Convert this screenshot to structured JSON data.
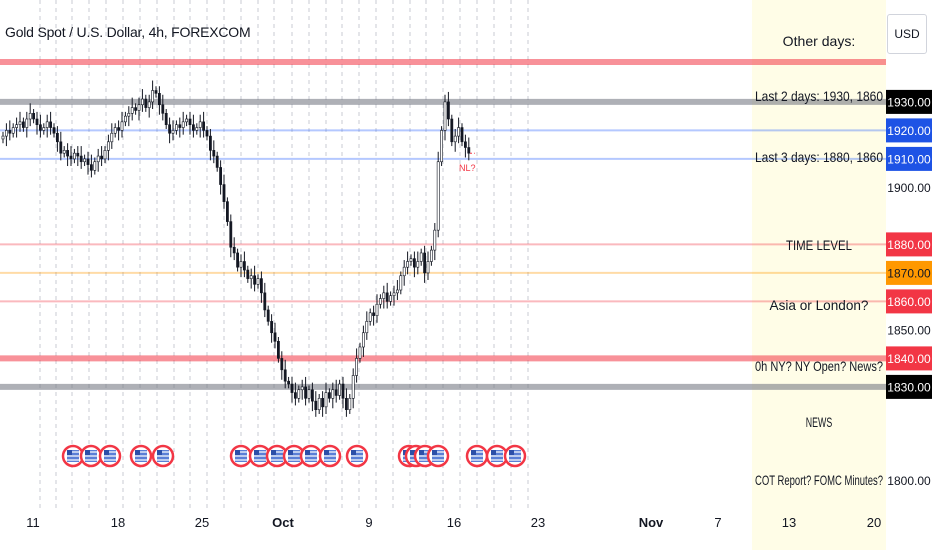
{
  "symbol_title": "Gold Spot / U.S. Dollar, 4h, FOREXCOM",
  "currency_button": "USD",
  "colors": {
    "red_level": "#f23645",
    "gray_level": "#787b86",
    "blue_level": "#2962ff",
    "orange_level": "#ff9800",
    "note_bg": "#fffde7",
    "candle": "#131722"
  },
  "flag_icon": "us-flag-icon",
  "x_axis_ticks": [
    "11",
    "18",
    "25",
    "Oct",
    "9",
    "16",
    "23",
    "Nov",
    "7",
    "13",
    "20"
  ],
  "y_axis_ticks": [
    "1900.00",
    "1800.00"
  ],
  "annotation": "NL?",
  "notes": [
    "Other days:",
    "Last 2 days: 1930, 1860",
    "Last 3 days: 1880, 1860",
    "TIME LEVEL",
    "Asia or London?",
    "0h NY? NY Open? News?",
    "NEWS",
    "COT Report? FOMC Minutes?"
  ],
  "partial_tick_text": "1850.00",
  "chart_data": {
    "type": "candlestick",
    "title": "Gold Spot / U.S. Dollar, 4h, FOREXCOM",
    "ylabel": "USD",
    "ylim": [
      1790,
      1945
    ],
    "price_levels": [
      {
        "price": 1944,
        "label": "",
        "color": "red",
        "kind": "thick"
      },
      {
        "price": 1930,
        "label": "1930.00",
        "color": "gray",
        "kind": "thick"
      },
      {
        "price": 1920,
        "label": "1920.00",
        "color": "blue",
        "kind": "thin"
      },
      {
        "price": 1910,
        "label": "1910.00",
        "color": "blue",
        "kind": "thin"
      },
      {
        "price": 1880,
        "label": "1880.00",
        "color": "red",
        "kind": "thin"
      },
      {
        "price": 1870,
        "label": "1870.00",
        "color": "orange",
        "kind": "thin"
      },
      {
        "price": 1860,
        "label": "1860.00",
        "color": "red",
        "kind": "thin"
      },
      {
        "price": 1840,
        "label": "1840.00",
        "color": "red",
        "kind": "thick"
      },
      {
        "price": 1830,
        "label": "1830.00",
        "color": "gray",
        "kind": "thick"
      }
    ],
    "closes": [
      1918,
      1920,
      1919,
      1921,
      1922,
      1923,
      1921,
      1924,
      1926,
      1924,
      1922,
      1920,
      1921,
      1923,
      1921,
      1919,
      1916,
      1912,
      1913,
      1911,
      1910,
      1912,
      1911,
      1909,
      1910,
      1908,
      1906,
      1909,
      1911,
      1910,
      1913,
      1916,
      1919,
      1921,
      1920,
      1923,
      1925,
      1926,
      1928,
      1927,
      1929,
      1931,
      1928,
      1930,
      1934,
      1933,
      1929,
      1926,
      1922,
      1919,
      1920,
      1922,
      1921,
      1923,
      1924,
      1922,
      1920,
      1921,
      1923,
      1920,
      1918,
      1913,
      1911,
      1907,
      1901,
      1895,
      1888,
      1879,
      1877,
      1872,
      1874,
      1871,
      1868,
      1869,
      1866,
      1868,
      1863,
      1857,
      1853,
      1849,
      1846,
      1840,
      1836,
      1832,
      1831,
      1828,
      1826,
      1829,
      1830,
      1826,
      1829,
      1825,
      1822,
      1826,
      1823,
      1828,
      1826,
      1829,
      1827,
      1831,
      1826,
      1822,
      1826,
      1834,
      1840,
      1844,
      1849,
      1853,
      1856,
      1855,
      1859,
      1861,
      1863,
      1860,
      1862,
      1863,
      1864,
      1869,
      1872,
      1874,
      1875,
      1872,
      1874,
      1877,
      1870,
      1874,
      1878,
      1885,
      1909,
      1920,
      1930,
      1924,
      1916,
      1918,
      1921,
      1916,
      1914,
      1912
    ]
  }
}
